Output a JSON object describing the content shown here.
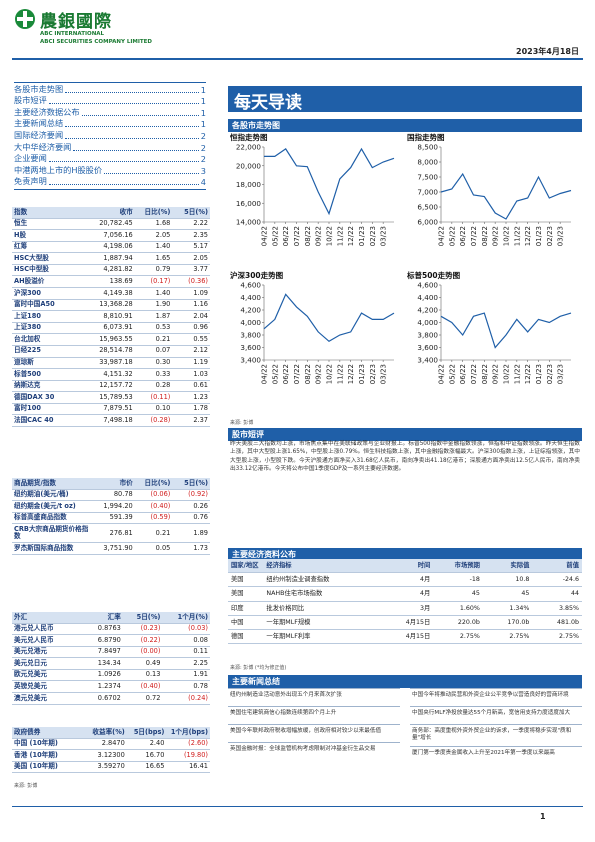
{
  "header": {
    "company_cn": "農銀國際",
    "company_en1": "ABC INTERNATIONAL",
    "company_en2": "ABCI SECURITIES COMPANY LIMITED",
    "date": "2023年4月18日"
  },
  "toc": [
    {
      "title": "各股市走势图",
      "page": 1
    },
    {
      "title": "股市短评",
      "page": 1
    },
    {
      "title": "主要经济数据公布",
      "page": 1
    },
    {
      "title": "主要新闻总结",
      "page": 1
    },
    {
      "title": "国际经济要闻",
      "page": 2
    },
    {
      "title": "大中华经济要闻",
      "page": 2
    },
    {
      "title": "企业要闻",
      "page": 2
    },
    {
      "title": "中港两地上市的H股股价",
      "page": 3
    },
    {
      "title": "免责声明",
      "page": 4
    }
  ],
  "title": "每天导读",
  "index_table": {
    "header": [
      "指数",
      "收市",
      "日比(%)",
      "5日(%)"
    ],
    "rows": [
      [
        "恒生",
        "20,782.45",
        "1.68",
        "2.22"
      ],
      [
        "H股",
        "7,056.16",
        "2.05",
        "2.35"
      ],
      [
        "红筹",
        "4,198.06",
        "1.40",
        "5.17"
      ],
      [
        "HSC大型股",
        "1,887.94",
        "1.65",
        "2.05"
      ],
      [
        "HSC中型股",
        "4,281.82",
        "0.79",
        "3.77"
      ],
      [
        "AH股溢价",
        "138.69",
        "(0.17)",
        "(0.36)"
      ],
      [
        "沪深300",
        "4,149.38",
        "1.40",
        "1.09"
      ],
      [
        "富时中国A50",
        "13,368.28",
        "1.90",
        "1.16"
      ],
      [
        "上证180",
        "8,810.91",
        "1.87",
        "2.04"
      ],
      [
        "上证380",
        "6,073.91",
        "0.53",
        "0.96"
      ],
      [
        "台北加权",
        "15,963.55",
        "0.21",
        "0.55"
      ],
      [
        "日经225",
        "28,514.78",
        "0.07",
        "2.12"
      ],
      [
        "道琼斯",
        "33,987.18",
        "0.30",
        "1.19"
      ],
      [
        "标普500",
        "4,151.32",
        "0.33",
        "1.03"
      ],
      [
        "纳斯达克",
        "12,157.72",
        "0.28",
        "0.61"
      ],
      [
        "德国DAX 30",
        "15,789.53",
        "(0.11)",
        "1.23"
      ],
      [
        "富时100",
        "7,879.51",
        "0.10",
        "1.78"
      ],
      [
        "法国CAC 40",
        "7,498.18",
        "(0.28)",
        "2.37"
      ]
    ]
  },
  "commodity_table": {
    "header": [
      "商品期货/指数",
      "市价",
      "日比(%)",
      "5日(%)"
    ],
    "rows": [
      [
        "纽约期油(美元/桶)",
        "80.78",
        "(0.06)",
        "(0.92)"
      ],
      [
        "纽约期金(美元/t oz)",
        "1,994.20",
        "(0.40)",
        "0.26"
      ],
      [
        "标普高盛商品指数",
        "591.39",
        "(0.59)",
        "0.76"
      ],
      [
        "CRB大宗商品期货价格指数",
        "276.81",
        "0.21",
        "1.89"
      ],
      [
        "罗杰斯国际商品指数",
        "3,751.90",
        "0.05",
        "1.73"
      ]
    ]
  },
  "fx_table": {
    "header": [
      "外汇",
      "汇率",
      "5日(%)",
      "1个月(%)"
    ],
    "rows": [
      [
        "港元兑人民币",
        "0.8763",
        "(0.23)",
        "(0.03)"
      ],
      [
        "美元兑人民币",
        "6.8790",
        "(0.22)",
        "0.08"
      ],
      [
        "美元兑港元",
        "7.8497",
        "(0.00)",
        "0.11"
      ],
      [
        "美元兑日元",
        "134.34",
        "0.49",
        "2.25"
      ],
      [
        "欧元兑美元",
        "1.0926",
        "0.13",
        "1.91"
      ],
      [
        "英镑兑美元",
        "1.2374",
        "(0.40)",
        "0.78"
      ],
      [
        "澳元兑美元",
        "0.6702",
        "0.72",
        "(0.24)"
      ]
    ]
  },
  "bond_table": {
    "header": [
      "政府债券",
      "收益率(%)",
      "5日(bps)",
      "1个月(bps)"
    ],
    "rows": [
      [
        "中国 (10年期)",
        "2.8470",
        "2.40",
        "(2.60)"
      ],
      [
        "香港 (10年期)",
        "3.12300",
        "16.70",
        "(19.80)"
      ],
      [
        "美国 (10年期)",
        "3.59270",
        "16.65",
        "16.41"
      ]
    ]
  },
  "left_source": "来源: 彭博",
  "charts_section": "各股市走势图",
  "charts_source": "来源: 彭博",
  "chart_data": [
    {
      "type": "line",
      "title": "恒指走势图",
      "color": "#1f5fa8",
      "categories": [
        "04/22",
        "05/22",
        "06/22",
        "07/22",
        "08/22",
        "09/22",
        "10/22",
        "11/22",
        "12/22",
        "01/23",
        "02/23",
        "03/23",
        null
      ],
      "values": [
        21000,
        21000,
        21800,
        20000,
        19900,
        17200,
        14900,
        18600,
        19800,
        21800,
        19800,
        20400,
        20800
      ],
      "ylim": [
        14000,
        22000
      ],
      "yticks": [
        {
          "value": 14000,
          "label": "14,000"
        },
        {
          "value": 16000,
          "label": "16,000"
        },
        {
          "value": 18000,
          "label": "18,000"
        },
        {
          "value": 20000,
          "label": "20,000"
        },
        {
          "value": 22000,
          "label": "22,000"
        }
      ]
    },
    {
      "type": "line",
      "title": "国指走势图",
      "color": "#1f5fa8",
      "categories": [
        "04/22",
        "05/22",
        "06/22",
        "07/22",
        "08/22",
        "09/22",
        "10/22",
        "11/22",
        "12/22",
        "01/23",
        "02/23",
        "03/23",
        null
      ],
      "values": [
        7000,
        7100,
        7600,
        6900,
        6850,
        6300,
        6100,
        6700,
        6800,
        7500,
        6800,
        6950,
        7050
      ],
      "ylim": [
        6000,
        8500
      ],
      "yticks": [
        {
          "value": 6000,
          "label": "6,000"
        },
        {
          "value": 6500,
          "label": "6,500"
        },
        {
          "value": 7000,
          "label": "7,000"
        },
        {
          "value": 7500,
          "label": "7,500"
        },
        {
          "value": 8000,
          "label": "8,000"
        },
        {
          "value": 8500,
          "label": "8,500"
        }
      ]
    },
    {
      "type": "line",
      "title": "沪深300走势图",
      "color": "#1f5fa8",
      "categories": [
        "04/22",
        "05/22",
        "06/22",
        "07/22",
        "08/22",
        "09/22",
        "10/22",
        "11/22",
        "12/22",
        "01/23",
        "02/23",
        "03/23",
        null
      ],
      "values": [
        3900,
        4050,
        4450,
        4250,
        4100,
        3850,
        3700,
        3800,
        3850,
        4150,
        4050,
        4050,
        4150
      ],
      "ylim": [
        3400,
        4600
      ],
      "yticks": [
        {
          "value": 3400,
          "label": "3,400"
        },
        {
          "value": 3600,
          "label": "3,600"
        },
        {
          "value": 3800,
          "label": "3,800"
        },
        {
          "value": 4000,
          "label": "4,000"
        },
        {
          "value": 4200,
          "label": "4,200"
        },
        {
          "value": 4400,
          "label": "4,400"
        },
        {
          "value": 4600,
          "label": "4,600"
        }
      ]
    },
    {
      "type": "line",
      "title": "标普500走势图",
      "color": "#1f5fa8",
      "categories": [
        "04/22",
        "05/22",
        "06/22",
        "07/22",
        "08/22",
        "09/22",
        "10/22",
        "11/22",
        "12/22",
        "01/23",
        "02/23",
        "03/23",
        null
      ],
      "values": [
        4100,
        4000,
        3800,
        4100,
        4150,
        3600,
        3800,
        4050,
        3850,
        4050,
        4000,
        4100,
        4150
      ],
      "ylim": [
        3400,
        4600
      ],
      "yticks": [
        {
          "value": 3400,
          "label": "3,400"
        },
        {
          "value": 3600,
          "label": "3,600"
        },
        {
          "value": 3800,
          "label": "3,800"
        },
        {
          "value": 4000,
          "label": "4,000"
        },
        {
          "value": 4200,
          "label": "4,200"
        },
        {
          "value": 4400,
          "label": "4,400"
        },
        {
          "value": 4600,
          "label": "4,600"
        }
      ]
    }
  ],
  "commentary": {
    "heading": "股市短评",
    "text": "昨天美股三大指数均上涨，市场焦点集中在美联储政策与企业财报上。标普500指数中金融指数领涨，恒指和中证指数领涨。昨天恒生指数上涨，其中大型股上涨1.65%，中型股上涨0.79%。恒生科技指数上涨，其中金融指数涨幅最大。沪深300指数上涨，上证综指领涨，其中大型股上涨，小型股下跌。今天沪股通方面净买入31.68亿人民币，南向净卖出41.18亿港币；深股通方面净卖出12.5亿人民币，南向净卖出33.12亿港币。今天将公布中国1季度GDP及一系列主要经济数据。"
  },
  "economic": {
    "heading": "主要经济资料公布",
    "header": [
      "国家/地区",
      "经济指标",
      "时间",
      "市场预期",
      "实际值",
      "前值"
    ],
    "rows": [
      [
        "美国",
        "纽约州制造业调查指数",
        "4月",
        "-18",
        "10.8",
        "-24.6"
      ],
      [
        "美国",
        "NAHB住宅市场指数",
        "4月",
        "45",
        "45",
        "44"
      ],
      [
        "印度",
        "批发价格同比",
        "3月",
        "1.60%",
        "1.34%",
        "3.85%"
      ],
      [
        "中国",
        "一年期MLF规模",
        "4月15日",
        "220.0b",
        "170.0b",
        "481.0b"
      ],
      [
        "德国",
        "一年期MLF利率",
        "4月15日",
        "2.75%",
        "2.75%",
        "2.75%"
      ]
    ],
    "source": "来源: 彭博  (*均为修正值)"
  },
  "news": {
    "heading": "主要新闻总结",
    "left": [
      "纽约州制造业活动意外出现五个月来首次扩张",
      "美国住宅建筑商信心指数连续第四个月上升",
      "美国今年联邦政府税收增幅放缓，创政府相对较少以来最低值",
      "英国金融时报：全球监管机构考虑限制对冲基金衍生品交易"
    ],
    "right": [
      "中国今年将推动民营和外资企业公平竞争以营造良好的营商环境",
      "中国央行MLF净投放量达55个月新高，宽信用支持力度适度加大",
      "商务部：高度重视外资外贸企业的诉求，一季度将稳步实现\"质和量\"增长",
      "厦门第一季度贵金属收入上升至2021年第一季度以来最高"
    ]
  },
  "page_number": "1"
}
